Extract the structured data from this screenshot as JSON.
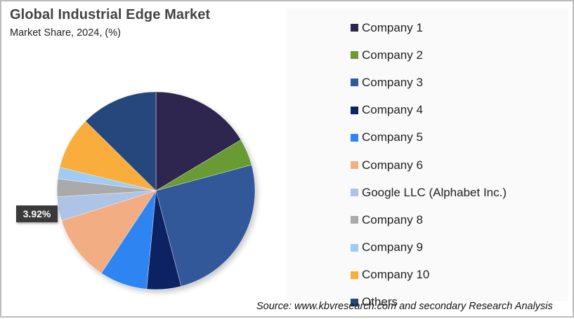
{
  "header": {
    "title": "Global Industrial Edge Market",
    "subtitle": "Market Share, 2024, (%)"
  },
  "pie_label": {
    "text": "3.92%",
    "for": "Google LLC (Alphabet Inc.)"
  },
  "source": "Source: www.kbvresearch.com and secondary Research Analysis",
  "chart_data": {
    "type": "pie",
    "title": "Global Industrial Edge Market",
    "subtitle": "Market Share, 2024, (%)",
    "start_angle_deg": 0,
    "direction": "clockwise",
    "legend_position": "right",
    "categories": [
      "Company 1",
      "Company 2",
      "Company 3",
      "Company 4",
      "Company 5",
      "Company 6",
      "Google LLC (Alphabet Inc.)",
      "Company 8",
      "Company 9",
      "Company 10",
      "Others"
    ],
    "values": [
      16.4,
      4.4,
      25.1,
      5.6,
      7.8,
      10.8,
      3.92,
      2.9,
      1.9,
      8.6,
      12.58
    ],
    "colors": [
      "#2e2550",
      "#6a9a31",
      "#31589a",
      "#0a2462",
      "#2f84f0",
      "#f2ad82",
      "#aec4e6",
      "#aaaaaa",
      "#9fcbf5",
      "#f8ad3c",
      "#26477c"
    ],
    "data_labels": [
      {
        "category": "Google LLC (Alphabet Inc.)",
        "text": "3.92%"
      }
    ],
    "source": "Source: www.kbvresearch.com and secondary Research Analysis"
  },
  "legend": {
    "items": [
      {
        "label": "Company 1",
        "color": "#2e2550"
      },
      {
        "label": "Company 2",
        "color": "#6a9a31"
      },
      {
        "label": "Company 3",
        "color": "#31589a"
      },
      {
        "label": "Company 4",
        "color": "#0a2462"
      },
      {
        "label": "Company 5",
        "color": "#2f84f0"
      },
      {
        "label": "Company 6",
        "color": "#f2ad82"
      },
      {
        "label": "Google LLC (Alphabet Inc.)",
        "color": "#aec4e6"
      },
      {
        "label": "Company 8",
        "color": "#aaaaaa"
      },
      {
        "label": "Company 9",
        "color": "#9fcbf5"
      },
      {
        "label": "Company 10",
        "color": "#f8ad3c"
      },
      {
        "label": "Others",
        "color": "#26477c"
      }
    ]
  }
}
